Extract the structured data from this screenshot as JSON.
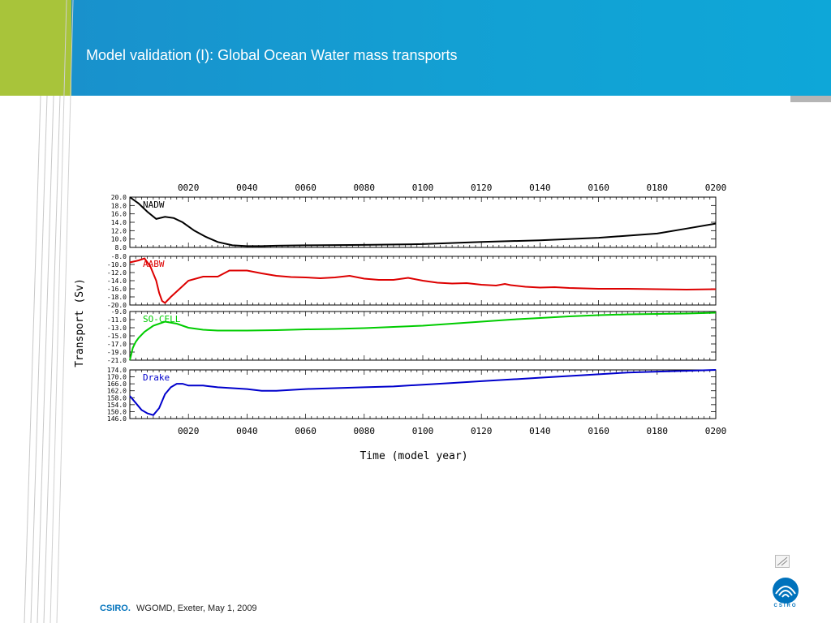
{
  "slide": {
    "title": "Model validation (I): Global Ocean Water mass transports",
    "footer_brand": "CSIRO.",
    "footer_text": "WGOMD, Exeter, May 1, 2009",
    "logo_text": "CSIRO"
  },
  "colors": {
    "header_blue": "#13a0d3",
    "accent_lime": "#a8c43a",
    "brand_blue": "#0072bc"
  },
  "chart_data": {
    "type": "line",
    "xlabel": "Time (model year)",
    "ylabel": "Transport (Sv)",
    "xlim": [
      0,
      200
    ],
    "x_ticks": [
      "0020",
      "0040",
      "0060",
      "0080",
      "0100",
      "0120",
      "0140",
      "0160",
      "0180",
      "0200"
    ],
    "panels": [
      {
        "name": "NADW",
        "color": "#000000",
        "ylim": [
          8,
          20
        ],
        "y_ticks": [
          "20.0",
          "18.0",
          "16.0",
          "14.0",
          "12.0",
          "10.0",
          "8.0"
        ],
        "x": [
          0,
          3,
          6,
          9,
          12,
          15,
          18,
          22,
          26,
          30,
          35,
          40,
          45,
          50,
          60,
          80,
          100,
          120,
          140,
          160,
          180,
          190,
          200
        ],
        "values": [
          20,
          18.5,
          16.5,
          14.8,
          15.3,
          15,
          14,
          12,
          10.5,
          9.3,
          8.5,
          8.3,
          8.3,
          8.4,
          8.5,
          8.6,
          8.8,
          9.3,
          9.7,
          10.3,
          11.3,
          12.5,
          13.7
        ]
      },
      {
        "name": "AABW",
        "color": "#dd0000",
        "ylim": [
          -20,
          -8
        ],
        "y_ticks": [
          "-8.0",
          "-10.0",
          "-12.0",
          "-14.0",
          "-16.0",
          "-18.0",
          "-20.0"
        ],
        "x": [
          0,
          3,
          5,
          7,
          9,
          10,
          11,
          12,
          14,
          17,
          20,
          25,
          30,
          34,
          40,
          45,
          50,
          55,
          60,
          65,
          70,
          75,
          80,
          85,
          90,
          95,
          100,
          105,
          110,
          115,
          120,
          125,
          128,
          130,
          135,
          140,
          145,
          150,
          155,
          160,
          170,
          180,
          190,
          200
        ],
        "values": [
          -9.5,
          -9,
          -8.5,
          -10.5,
          -14,
          -17,
          -19,
          -19.5,
          -18,
          -16,
          -14,
          -13,
          -13,
          -11.5,
          -11.5,
          -12.2,
          -12.8,
          -13.1,
          -13.2,
          -13.4,
          -13.2,
          -12.8,
          -13.5,
          -13.8,
          -13.8,
          -13.3,
          -14,
          -14.5,
          -14.7,
          -14.6,
          -15,
          -15.2,
          -14.8,
          -15.1,
          -15.5,
          -15.7,
          -15.6,
          -15.8,
          -15.9,
          -16,
          -16,
          -16.1,
          -16.2,
          -16.1
        ]
      },
      {
        "name": "SO-CELL",
        "color": "#00cc00",
        "ylim": [
          -21,
          -9
        ],
        "y_ticks": [
          "-9.0",
          "-11.0",
          "-13.0",
          "-15.0",
          "-17.0",
          "-19.0",
          "-21.0"
        ],
        "x": [
          0,
          1,
          2,
          3,
          5,
          8,
          12,
          16,
          20,
          25,
          30,
          40,
          50,
          60,
          70,
          80,
          90,
          100,
          110,
          120,
          130,
          140,
          150,
          160,
          170,
          180,
          190,
          200
        ],
        "values": [
          -21,
          -18,
          -16.5,
          -15.5,
          -14,
          -12.5,
          -11.5,
          -12,
          -13,
          -13.5,
          -13.7,
          -13.7,
          -13.6,
          -13.4,
          -13.3,
          -13.1,
          -12.8,
          -12.5,
          -12.0,
          -11.5,
          -11.0,
          -10.6,
          -10.2,
          -9.9,
          -9.7,
          -9.6,
          -9.5,
          -9.3
        ]
      },
      {
        "name": "Drake",
        "color": "#0000cc",
        "ylim": [
          146,
          174
        ],
        "y_ticks": [
          "174.0",
          "170.0",
          "166.0",
          "162.0",
          "158.0",
          "154.0",
          "150.0",
          "146.0"
        ],
        "x": [
          0,
          2,
          4,
          6,
          8,
          10,
          12,
          14,
          16,
          18,
          20,
          25,
          30,
          40,
          45,
          50,
          60,
          70,
          80,
          90,
          100,
          110,
          120,
          130,
          140,
          150,
          160,
          170,
          180,
          190,
          200
        ],
        "values": [
          159,
          155,
          151,
          149,
          148,
          152,
          160,
          164,
          166,
          166,
          165,
          165,
          164,
          163,
          162,
          162,
          163,
          163.5,
          164,
          164.5,
          165.5,
          166.5,
          167.5,
          168.5,
          169.5,
          170.5,
          171.5,
          172.5,
          173,
          173.5,
          174
        ]
      }
    ]
  }
}
